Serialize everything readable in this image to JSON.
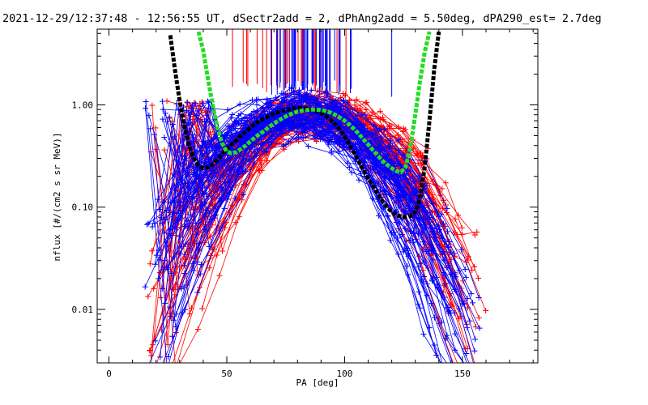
{
  "chart_data": {
    "type": "line",
    "title": "2021-12-29/12:37:48 - 12:56:55 UT, dSectr2add = 2, dPhAng2add = 5.50deg, dPA290_est=   2.7deg",
    "xlabel": "PA [deg]",
    "ylabel": "nflux [#/(cm2 s sr MeV)]",
    "xlim": [
      -5,
      182
    ],
    "ylim": [
      0.003,
      5.5
    ],
    "yscale": "log",
    "grid": false,
    "x_ticks": [
      {
        "value": 0,
        "label": "0"
      },
      {
        "value": 50,
        "label": "50"
      },
      {
        "value": 100,
        "label": "100"
      },
      {
        "value": 150,
        "label": "150"
      }
    ],
    "y_ticks": [
      {
        "value": 0.01,
        "label": "0.01"
      },
      {
        "value": 0.1,
        "label": "0.10"
      },
      {
        "value": 1,
        "label": "1.00"
      }
    ],
    "series": [
      {
        "color": "#000000",
        "style": "dashed-thick",
        "x": [
          26,
          28,
          30,
          32,
          34,
          36,
          38,
          40,
          42,
          44,
          46,
          48,
          50,
          52,
          54,
          56,
          58,
          60,
          62,
          64,
          66,
          68,
          70,
          72,
          74,
          76,
          78,
          80,
          82,
          84,
          86,
          88,
          90,
          92,
          94,
          96,
          98,
          100,
          102,
          104,
          106,
          108,
          110,
          112,
          114,
          116,
          118,
          120,
          122,
          124,
          126,
          128,
          130,
          132,
          134,
          136,
          138,
          140
        ],
        "y": [
          4.8,
          2.2,
          1.1,
          0.62,
          0.4,
          0.3,
          0.255,
          0.24,
          0.245,
          0.26,
          0.29,
          0.33,
          0.37,
          0.41,
          0.45,
          0.5,
          0.55,
          0.6,
          0.65,
          0.7,
          0.74,
          0.78,
          0.82,
          0.85,
          0.88,
          0.9,
          0.92,
          0.93,
          0.93,
          0.92,
          0.9,
          0.87,
          0.83,
          0.78,
          0.72,
          0.65,
          0.57,
          0.49,
          0.41,
          0.34,
          0.28,
          0.23,
          0.19,
          0.16,
          0.135,
          0.115,
          0.1,
          0.09,
          0.084,
          0.081,
          0.08,
          0.082,
          0.09,
          0.12,
          0.25,
          0.7,
          2.2,
          5.2
        ]
      },
      {
        "color": "#22dd22",
        "style": "dashed-thick",
        "x": [
          38,
          40,
          42,
          44,
          46,
          48,
          50,
          52,
          54,
          56,
          58,
          60,
          62,
          64,
          66,
          68,
          70,
          72,
          74,
          76,
          78,
          80,
          82,
          84,
          86,
          88,
          90,
          92,
          94,
          96,
          98,
          100,
          102,
          104,
          106,
          108,
          110,
          112,
          114,
          116,
          118,
          120,
          122,
          124,
          126,
          128,
          130,
          132,
          134,
          136
        ],
        "y": [
          5.2,
          3.4,
          1.8,
          1.0,
          0.6,
          0.42,
          0.35,
          0.335,
          0.345,
          0.37,
          0.4,
          0.44,
          0.48,
          0.52,
          0.56,
          0.61,
          0.66,
          0.7,
          0.75,
          0.79,
          0.83,
          0.86,
          0.88,
          0.89,
          0.9,
          0.9,
          0.89,
          0.87,
          0.84,
          0.8,
          0.75,
          0.7,
          0.64,
          0.58,
          0.52,
          0.46,
          0.41,
          0.36,
          0.32,
          0.285,
          0.26,
          0.24,
          0.225,
          0.22,
          0.25,
          0.4,
          0.8,
          1.7,
          3.3,
          5.2
        ]
      }
    ],
    "scatter_series": [
      {
        "color": "#ff0000",
        "marker": "+",
        "connected": true,
        "description_count": 140
      },
      {
        "color": "#0000ff",
        "marker": "+",
        "connected": true,
        "description_count": 160
      }
    ],
    "vertical_lines": {
      "color_groups": [
        "#ff0000",
        "#0000ff"
      ],
      "y_bottom": 1.2,
      "y_top": 5.5
    }
  }
}
